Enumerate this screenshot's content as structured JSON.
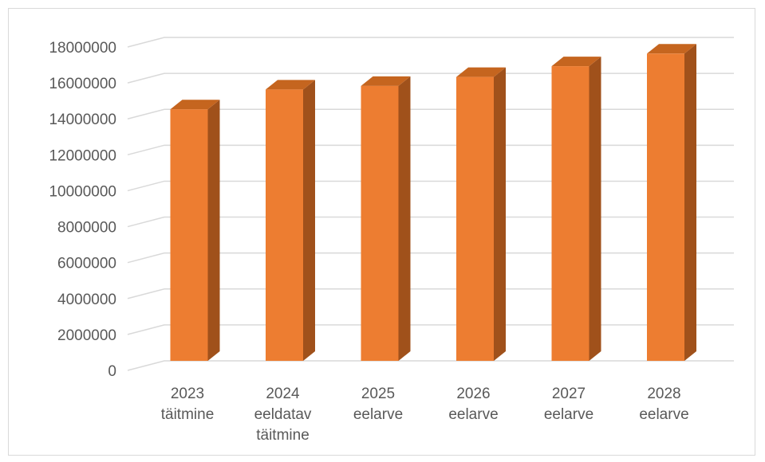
{
  "chart_data": {
    "type": "bar",
    "title": "",
    "xlabel": "",
    "ylabel": "",
    "categories": [
      [
        "2023",
        "täitmine"
      ],
      [
        "2024",
        "eeldatav",
        "täitmine"
      ],
      [
        "2025",
        "eelarve"
      ],
      [
        "2026",
        "eelarve"
      ],
      [
        "2027",
        "eelarve"
      ],
      [
        "2028",
        "eelarve"
      ]
    ],
    "values": [
      14000000,
      15100000,
      15300000,
      15800000,
      16400000,
      17100000
    ],
    "ylim": [
      0,
      18000000
    ],
    "yticks": [
      "0",
      "2000000",
      "4000000",
      "6000000",
      "8000000",
      "10000000",
      "12000000",
      "14000000",
      "16000000",
      "18000000"
    ],
    "grid": true,
    "legend": "none",
    "colors": {
      "front": "#ED7D31",
      "side": "#A0511B",
      "top": "#C5651F",
      "grid": "#D9D9D9",
      "text": "#595959"
    }
  }
}
